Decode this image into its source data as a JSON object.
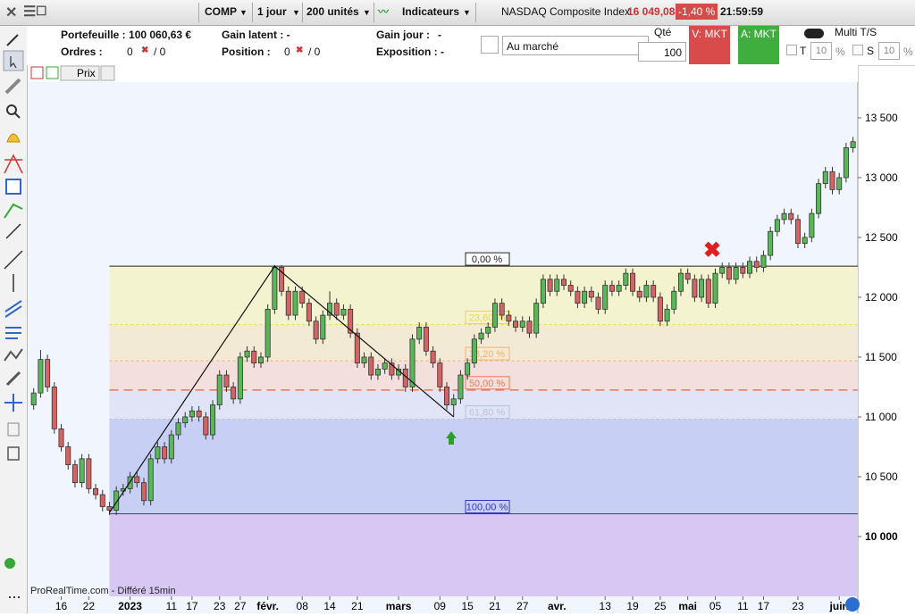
{
  "toolbar": {
    "symbol": "COMP",
    "period": "1 jour",
    "units": "200 unités",
    "indicators": "Indicateurs",
    "instrument": "NASDAQ Composite Index",
    "price": "16 049,08",
    "change": "-1,40 %",
    "time": "21:59:59"
  },
  "panel": {
    "portfolio": "Portefeuille : 100 060,63 €",
    "orders": "Ordres :",
    "orders_a": "0",
    "orders_b": "/ 0",
    "latent": "Gain latent : -",
    "position": "Position :",
    "position_a": "0",
    "position_b": "/ 0",
    "day_gain": "Gain jour :",
    "day_gain_value": "-",
    "exposure": "Exposition : -",
    "order_type": "Au marché",
    "qty_label": "Qté",
    "qty": "100",
    "sell": "V: MKT",
    "buy": "A: MKT",
    "multi": "Multi T/S",
    "t": "T",
    "t_value": "10",
    "t_unit": "%",
    "s": "S",
    "s_value": "10",
    "s_unit": "%",
    "price_tab": "Prix"
  },
  "footer": "ProRealTime.com - Différé 15min",
  "chart": {
    "type": "candlestick",
    "ylim": [
      9358,
      13925
    ],
    "xlim": [
      -1,
      119.7
    ],
    "up_color": "#58b858",
    "down_color": "#d46464",
    "yticks": [
      {
        "value": 10000,
        "label": "10 000"
      },
      {
        "value": 10500,
        "label": "10 500"
      },
      {
        "value": 11000,
        "label": "11 000"
      },
      {
        "value": 11500,
        "label": "11 500"
      },
      {
        "value": 12000,
        "label": "12 000"
      },
      {
        "value": 12500,
        "label": "12 500"
      },
      {
        "value": 13000,
        "label": "13 000"
      },
      {
        "value": 13500,
        "label": "13 500"
      }
    ],
    "xticks": [
      {
        "value": 4,
        "label": "16"
      },
      {
        "value": 8,
        "label": "22"
      },
      {
        "value": 14,
        "label": "2023"
      },
      {
        "value": 20,
        "label": "11"
      },
      {
        "value": 23,
        "label": "17"
      },
      {
        "value": 27,
        "label": "23"
      },
      {
        "value": 30,
        "label": "27"
      },
      {
        "value": 34,
        "label": "févr."
      },
      {
        "value": 39,
        "label": "08"
      },
      {
        "value": 43,
        "label": "14"
      },
      {
        "value": 47,
        "label": "21"
      },
      {
        "value": 53,
        "label": "mars"
      },
      {
        "value": 59,
        "label": "09"
      },
      {
        "value": 63,
        "label": "15"
      },
      {
        "value": 67,
        "label": "21"
      },
      {
        "value": 71,
        "label": "27"
      },
      {
        "value": 76,
        "label": "avr."
      },
      {
        "value": 83,
        "label": "13"
      },
      {
        "value": 87,
        "label": "19"
      },
      {
        "value": 91,
        "label": "25"
      },
      {
        "value": 95,
        "label": "mai"
      },
      {
        "value": 99,
        "label": "05"
      },
      {
        "value": 103,
        "label": "11"
      },
      {
        "value": 106,
        "label": "17"
      },
      {
        "value": 111,
        "label": "23"
      },
      {
        "value": 117,
        "label": "juin"
      }
    ],
    "fib": {
      "start": 11,
      "high": 12260,
      "low": 10190,
      "levels": [
        {
          "value": 0,
          "label": "0,00 %",
          "color": "#222",
          "fill": "#f3f3cf"
        },
        {
          "value": 23.6,
          "label": "23,60 %",
          "color": "#e8d84a",
          "fill": "#f3ead6"
        },
        {
          "value": 38.2,
          "label": "38,20 %",
          "color": "#f0b070",
          "fill": "#f3e0dc"
        },
        {
          "value": 50,
          "label": "50,00 %",
          "color": "#f07850",
          "fill": "#e0e4f6"
        },
        {
          "value": 61.8,
          "label": "61,80 %",
          "color": "#b8c2dc",
          "fill": "#c8cff5"
        },
        {
          "value": 100,
          "label": "100,00 %",
          "color": "#3535c0",
          "fill": "#d6c8f3"
        }
      ]
    },
    "trendline": [
      [
        11,
        10200
      ],
      [
        35,
        12260
      ],
      [
        61,
        11000
      ]
    ],
    "candles": [
      [
        11100,
        11240,
        11060,
        11200
      ],
      [
        11200,
        11560,
        11160,
        11480
      ],
      [
        11480,
        11520,
        11210,
        11250
      ],
      [
        11250,
        11290,
        10860,
        10900
      ],
      [
        10900,
        10940,
        10710,
        10750
      ],
      [
        10750,
        10790,
        10560,
        10600
      ],
      [
        10600,
        10640,
        10410,
        10450
      ],
      [
        10450,
        10690,
        10410,
        10650
      ],
      [
        10650,
        10690,
        10360,
        10400
      ],
      [
        10400,
        10440,
        10310,
        10350
      ],
      [
        10350,
        10390,
        10210,
        10250
      ],
      [
        10250,
        10290,
        10180,
        10220
      ],
      [
        10220,
        10420,
        10180,
        10380
      ],
      [
        10380,
        10440,
        10340,
        10400
      ],
      [
        10400,
        10540,
        10360,
        10500
      ],
      [
        10500,
        10540,
        10410,
        10450
      ],
      [
        10450,
        10490,
        10260,
        10300
      ],
      [
        10300,
        10690,
        10260,
        10650
      ],
      [
        10650,
        10790,
        10610,
        10750
      ],
      [
        10750,
        10790,
        10610,
        10650
      ],
      [
        10650,
        10890,
        10610,
        10850
      ],
      [
        10850,
        10990,
        10810,
        10950
      ],
      [
        10950,
        11040,
        10910,
        11000
      ],
      [
        11000,
        11090,
        10960,
        11050
      ],
      [
        11050,
        11090,
        10960,
        11000
      ],
      [
        11000,
        11040,
        10810,
        10850
      ],
      [
        10850,
        11140,
        10810,
        11100
      ],
      [
        11100,
        11390,
        11060,
        11350
      ],
      [
        11350,
        11390,
        11210,
        11250
      ],
      [
        11250,
        11290,
        11110,
        11150
      ],
      [
        11150,
        11540,
        11110,
        11500
      ],
      [
        11500,
        11590,
        11460,
        11550
      ],
      [
        11550,
        11590,
        11410,
        11450
      ],
      [
        11450,
        11540,
        11410,
        11500
      ],
      [
        11500,
        11940,
        11460,
        11900
      ],
      [
        11900,
        12270,
        11860,
        12250
      ],
      [
        12250,
        12270,
        12010,
        12050
      ],
      [
        12050,
        12090,
        11810,
        11850
      ],
      [
        11850,
        12090,
        11810,
        12050
      ],
      [
        12050,
        12090,
        11910,
        11950
      ],
      [
        11950,
        11990,
        11760,
        11800
      ],
      [
        11800,
        11840,
        11610,
        11650
      ],
      [
        11650,
        11890,
        11610,
        11850
      ],
      [
        11850,
        12050,
        11810,
        11950
      ],
      [
        11950,
        11990,
        11810,
        11850
      ],
      [
        11850,
        11940,
        11810,
        11900
      ],
      [
        11900,
        11940,
        11660,
        11700
      ],
      [
        11700,
        11740,
        11410,
        11450
      ],
      [
        11450,
        11540,
        11410,
        11500
      ],
      [
        11500,
        11540,
        11310,
        11350
      ],
      [
        11350,
        11440,
        11310,
        11400
      ],
      [
        11400,
        11490,
        11360,
        11450
      ],
      [
        11450,
        11490,
        11310,
        11350
      ],
      [
        11350,
        11440,
        11310,
        11400
      ],
      [
        11400,
        11440,
        11210,
        11250
      ],
      [
        11250,
        11690,
        11210,
        11650
      ],
      [
        11650,
        11790,
        11610,
        11750
      ],
      [
        11750,
        11790,
        11510,
        11550
      ],
      [
        11550,
        11590,
        11410,
        11450
      ],
      [
        11450,
        11490,
        11210,
        11250
      ],
      [
        11250,
        11290,
        11060,
        11100
      ],
      [
        11100,
        11190,
        11000,
        11150
      ],
      [
        11150,
        11390,
        11110,
        11350
      ],
      [
        11350,
        11490,
        11310,
        11450
      ],
      [
        11450,
        11690,
        11410,
        11650
      ],
      [
        11650,
        11740,
        11610,
        11700
      ],
      [
        11700,
        11790,
        11660,
        11750
      ],
      [
        11750,
        11990,
        11710,
        11950
      ],
      [
        11950,
        11990,
        11810,
        11850
      ],
      [
        11850,
        11890,
        11760,
        11800
      ],
      [
        11800,
        11840,
        11710,
        11750
      ],
      [
        11750,
        11840,
        11710,
        11800
      ],
      [
        11800,
        11840,
        11660,
        11700
      ],
      [
        11700,
        11990,
        11660,
        11950
      ],
      [
        11950,
        12190,
        11910,
        12150
      ],
      [
        12150,
        12190,
        12010,
        12050
      ],
      [
        12050,
        12190,
        12010,
        12150
      ],
      [
        12150,
        12190,
        12060,
        12100
      ],
      [
        12100,
        12140,
        12010,
        12050
      ],
      [
        12050,
        12090,
        11910,
        11950
      ],
      [
        11950,
        12090,
        11910,
        12050
      ],
      [
        12050,
        12090,
        11960,
        12000
      ],
      [
        12000,
        12040,
        11860,
        11900
      ],
      [
        11900,
        12140,
        11860,
        12100
      ],
      [
        12100,
        12140,
        12010,
        12050
      ],
      [
        12050,
        12140,
        12010,
        12100
      ],
      [
        12100,
        12240,
        12060,
        12200
      ],
      [
        12200,
        12240,
        12010,
        12050
      ],
      [
        12050,
        12090,
        11960,
        12000
      ],
      [
        12000,
        12140,
        11960,
        12100
      ],
      [
        12100,
        12140,
        11960,
        12000
      ],
      [
        12000,
        12040,
        11760,
        11800
      ],
      [
        11800,
        11940,
        11760,
        11900
      ],
      [
        11900,
        12090,
        11860,
        12050
      ],
      [
        12050,
        12240,
        12010,
        12200
      ],
      [
        12200,
        12240,
        12110,
        12150
      ],
      [
        12150,
        12190,
        11960,
        12000
      ],
      [
        12000,
        12190,
        11960,
        12150
      ],
      [
        12150,
        12190,
        11910,
        11950
      ],
      [
        11950,
        12240,
        11910,
        12200
      ],
      [
        12200,
        12290,
        12160,
        12250
      ],
      [
        12250,
        12290,
        12110,
        12150
      ],
      [
        12150,
        12290,
        12110,
        12250
      ],
      [
        12250,
        12290,
        12160,
        12200
      ],
      [
        12200,
        12340,
        12160,
        12300
      ],
      [
        12300,
        12340,
        12210,
        12250
      ],
      [
        12250,
        12390,
        12210,
        12350
      ],
      [
        12350,
        12590,
        12310,
        12550
      ],
      [
        12550,
        12690,
        12510,
        12650
      ],
      [
        12650,
        12740,
        12610,
        12700
      ],
      [
        12700,
        12740,
        12610,
        12650
      ],
      [
        12650,
        12690,
        12410,
        12450
      ],
      [
        12450,
        12540,
        12410,
        12500
      ],
      [
        12500,
        12740,
        12460,
        12700
      ],
      [
        12700,
        12990,
        12660,
        12950
      ],
      [
        12950,
        13090,
        12910,
        13050
      ],
      [
        13050,
        13090,
        12860,
        12900
      ],
      [
        12900,
        13040,
        12860,
        13000
      ],
      [
        13000,
        13290,
        12960,
        13250
      ],
      [
        13250,
        13340,
        13210,
        13300
      ]
    ]
  }
}
